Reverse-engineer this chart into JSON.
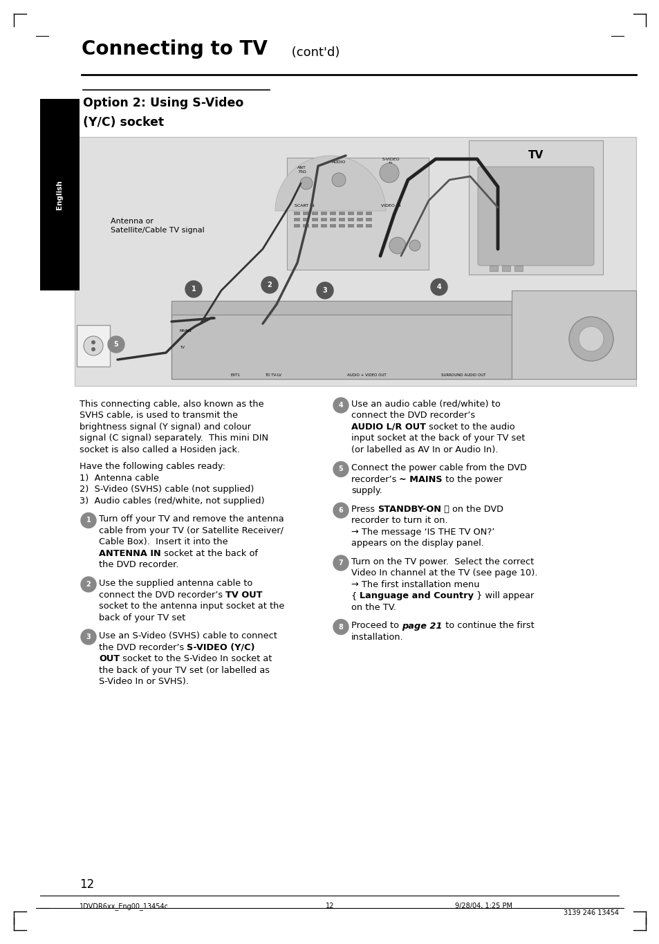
{
  "bg_color": "#ffffff",
  "page_width": 9.54,
  "page_height": 13.65,
  "title_main": "Connecting to TV",
  "title_suffix": " (cont'd)",
  "section_title_line1": "Option 2: Using S-Video",
  "section_title_line2": "(Y/C) socket",
  "sidebar_text": "English",
  "page_number": "12",
  "footer_left": "1DVDR6xx_Eng00_13454c",
  "footer_center": "12",
  "footer_date": "9/28/04, 1:25 PM",
  "footer_right": "3139 246 13454",
  "intro_text": "This connecting cable, also known as the\nSVHS cable, is used to transmit the\nbrightness signal (Y signal) and colour\nsignal (C signal) separately.  This mini DIN\nsocket is also called a Hosiden jack.",
  "cables_header": "Have the following cables ready:",
  "cables_list": [
    "1)  Antenna cable",
    "2)  S-Video (SVHS) cable (not supplied)",
    "3)  Audio cables (red/white, not supplied)"
  ],
  "step1_text": [
    {
      "t": "Turn off your TV and remove the antenna\ncable from your TV (or Satellite Receiver/\nCable Box).  Insert it into the\n",
      "b": false
    },
    {
      "t": "ANTENNA IN",
      "b": true
    },
    {
      "t": " socket at the back of\nthe DVD recorder.",
      "b": false
    }
  ],
  "step2_text": [
    {
      "t": "Use the supplied antenna cable to\nconnect the DVD recorder’s ",
      "b": false
    },
    {
      "t": "TV OUT",
      "b": true
    },
    {
      "t": "\nsocket to the antenna input socket at the\nback of your TV set",
      "b": false
    }
  ],
  "step3_text": [
    {
      "t": "Use an S-Video (SVHS) cable to connect\nthe DVD recorder’s ",
      "b": false
    },
    {
      "t": "S-VIDEO (Y/C)\nOUT",
      "b": true
    },
    {
      "t": " socket to the S-Video In socket at\nthe back of your TV set (or labelled as\nS-Video In or SVHS).",
      "b": false
    }
  ],
  "step4_text": [
    {
      "t": "Use an audio cable (red/white) to\nconnect the DVD recorder’s\n",
      "b": false
    },
    {
      "t": "AUDIO L/R OUT",
      "b": true
    },
    {
      "t": " socket to the audio\ninput socket at the back of your TV set\n(or labelled as AV In or Audio In).",
      "b": false
    }
  ],
  "step5_text": [
    {
      "t": "Connect the power cable from the DVD\nrecorder’s ",
      "b": false
    },
    {
      "t": "~ MAINS",
      "b": true
    },
    {
      "t": " to the power\nsupply.",
      "b": false
    }
  ],
  "step6_text": [
    {
      "t": "Press ",
      "b": false
    },
    {
      "t": "STANDBY-ON",
      "b": true
    },
    {
      "t": " ⏼ on the DVD\nrecorder to turn it on.\n→ The message ‘IS THE TV ON?’\nappears on the display panel.",
      "b": false
    }
  ],
  "step7_text": [
    {
      "t": "Turn on the TV power.  Select the correct\nVideo In channel at the TV (see page 10).\n→ The first installation menu\n{ ",
      "b": false
    },
    {
      "t": "Language and Country",
      "b": true
    },
    {
      "t": " } will appear\non the TV.",
      "b": false
    }
  ],
  "step8_text": [
    {
      "t": "Proceed to ",
      "b": false
    },
    {
      "t": "page 21",
      "b": true,
      "i": true
    },
    {
      "t": " to continue the first\ninstallation.",
      "b": false
    }
  ],
  "step_circle_color": "#888888",
  "diagram_bg": "#e0e0e0",
  "diagram_border": "#bbbbbb"
}
